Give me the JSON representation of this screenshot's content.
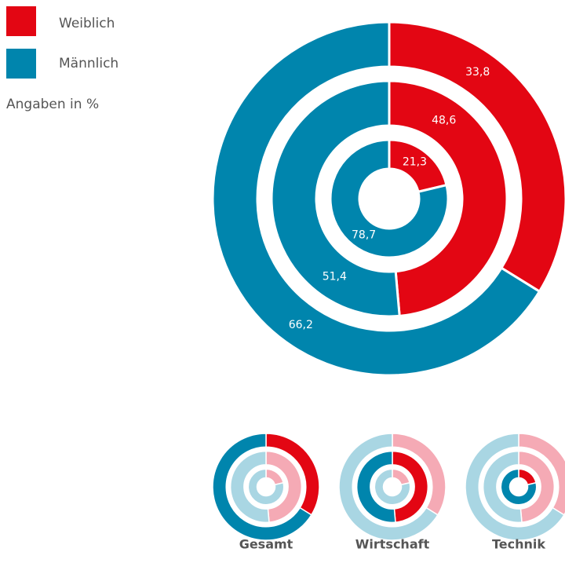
{
  "chart_data": {
    "type": "donut",
    "note": "Angaben in %",
    "categories": [
      "Gesamt",
      "Wirtschaft",
      "Technik"
    ],
    "series": [
      {
        "name": "Weiblich",
        "color": "#e30613",
        "light_color": "#f5aab5",
        "values": [
          33.8,
          48.6,
          21.3
        ],
        "value_labels": [
          "33,8",
          "48,6",
          "21,3"
        ]
      },
      {
        "name": "Männlich",
        "color": "#0085ad",
        "light_color": "#a9d6e3",
        "values": [
          66.2,
          51.4,
          78.7
        ],
        "value_labels": [
          "66,2",
          "51,4",
          "78,7"
        ]
      }
    ]
  }
}
